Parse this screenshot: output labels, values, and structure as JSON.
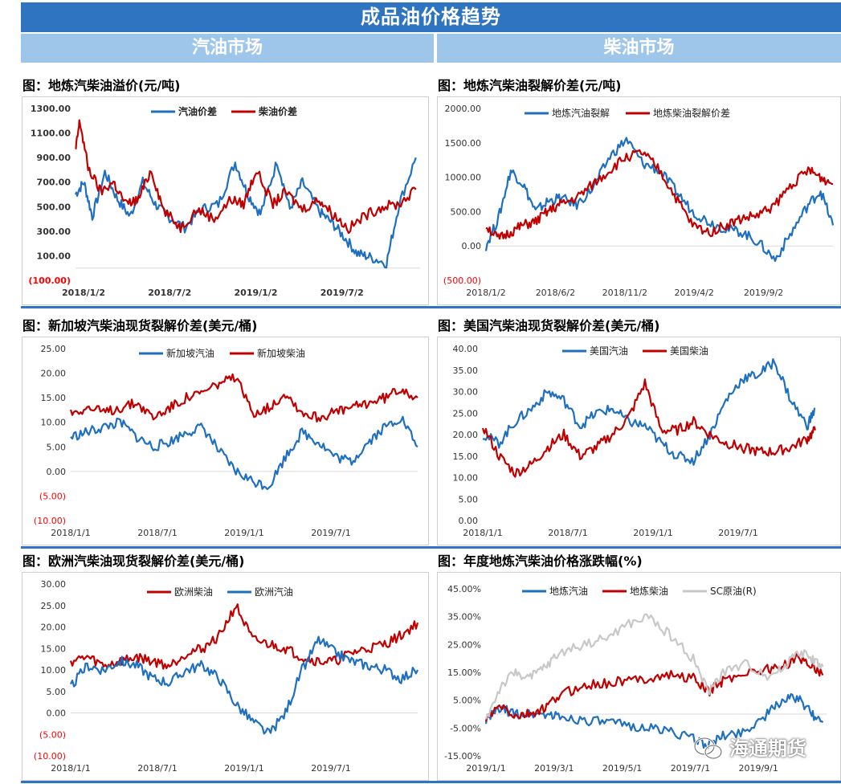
{
  "header": {
    "title": "成品油价格趋势",
    "left_market": "汽油市场",
    "right_market": "柴油市场"
  },
  "watermark": {
    "text": "海通期货",
    "icon": "wechat-icon"
  },
  "colors": {
    "blue": "#1f6fbf",
    "red": "#c00000",
    "gray": "#c8c8c8",
    "negative": "#ff0000",
    "banner": "#2e74c0",
    "subbanner": "#9ec5ea"
  },
  "chart_data": [
    {
      "id": "c1",
      "panel_title": "图：地炼汽柴油溢价(元/吨)",
      "type": "line",
      "ylim": [
        -100,
        1300
      ],
      "yticks": [
        {
          "label": "1300.00",
          "value": 1300
        },
        {
          "label": "1100.00",
          "value": 1100
        },
        {
          "label": "900.00",
          "value": 900
        },
        {
          "label": "700.00",
          "value": 700
        },
        {
          "label": "500.00",
          "value": 500
        },
        {
          "label": "300.00",
          "value": 300
        },
        {
          "label": "100.00",
          "value": 100
        },
        {
          "label": "(100.00)",
          "value": -100
        }
      ],
      "xticks": [
        "2018/1/2",
        "2018/7/2",
        "2019/1/2",
        "2019/7/2"
      ],
      "xrange": [
        0,
        4.1
      ],
      "legend_style": "bold",
      "series": [
        {
          "name": "汽油价差",
          "color": "#1f6fbf",
          "x": [
            0,
            0.1,
            0.2,
            0.35,
            0.5,
            0.65,
            0.8,
            0.95,
            1.1,
            1.3,
            1.5,
            1.7,
            1.9,
            2.05,
            2.2,
            2.4,
            2.55,
            2.7,
            2.9,
            3.05,
            3.2,
            3.35,
            3.5,
            3.7,
            3.85,
            4.05
          ],
          "values": [
            600,
            700,
            420,
            780,
            560,
            420,
            700,
            520,
            420,
            330,
            480,
            520,
            860,
            600,
            440,
            870,
            480,
            700,
            460,
            370,
            250,
            120,
            90,
            40,
            520,
            900
          ]
        },
        {
          "name": "柴油价差",
          "color": "#c00000",
          "x": [
            0,
            0.05,
            0.15,
            0.3,
            0.45,
            0.6,
            0.75,
            0.9,
            1.05,
            1.25,
            1.45,
            1.65,
            1.85,
            2.0,
            2.15,
            2.35,
            2.5,
            2.7,
            2.9,
            3.05,
            3.25,
            3.45,
            3.65,
            3.85,
            4.05
          ],
          "values": [
            950,
            1200,
            820,
            620,
            700,
            520,
            560,
            800,
            470,
            330,
            480,
            400,
            560,
            520,
            800,
            520,
            620,
            480,
            560,
            450,
            320,
            430,
            500,
            520,
            640
          ]
        }
      ]
    },
    {
      "id": "c2",
      "panel_title": "图：地炼汽柴油裂解价差(元/吨)",
      "type": "line",
      "ylim": [
        -500,
        2000
      ],
      "yticks": [
        {
          "label": "2000.00",
          "value": 2000
        },
        {
          "label": "1500.00",
          "value": 1500
        },
        {
          "label": "1000.00",
          "value": 1000
        },
        {
          "label": "500.00",
          "value": 500
        },
        {
          "label": "0.00",
          "value": 0
        },
        {
          "label": "(500.00)",
          "value": -500
        }
      ],
      "xticks": [
        "2018/1/2",
        "2018/6/2",
        "2018/11/2",
        "2019/4/2",
        "2019/9/2"
      ],
      "xrange": [
        0,
        4.2
      ],
      "legend_style": "normal",
      "series": [
        {
          "name": "地炼汽油裂解",
          "color": "#1f6fbf",
          "x": [
            0,
            0.15,
            0.3,
            0.45,
            0.6,
            0.75,
            0.9,
            1.1,
            1.3,
            1.5,
            1.7,
            1.9,
            2.1,
            2.3,
            2.5,
            2.7,
            2.9,
            3.1,
            3.3,
            3.5,
            3.7,
            3.9,
            4.05,
            4.2
          ],
          "values": [
            0,
            400,
            1100,
            900,
            500,
            650,
            700,
            600,
            850,
            1300,
            1550,
            1200,
            1100,
            800,
            500,
            350,
            250,
            200,
            50,
            -200,
            200,
            600,
            800,
            300
          ]
        },
        {
          "name": "地炼柴油裂解价差",
          "color": "#c00000",
          "x": [
            0,
            0.15,
            0.3,
            0.45,
            0.6,
            0.75,
            0.9,
            1.1,
            1.3,
            1.5,
            1.7,
            1.9,
            2.1,
            2.3,
            2.5,
            2.7,
            2.9,
            3.1,
            3.3,
            3.5,
            3.7,
            3.9,
            4.05,
            4.2
          ],
          "values": [
            300,
            100,
            200,
            300,
            350,
            500,
            600,
            700,
            900,
            1100,
            1300,
            1350,
            1100,
            700,
            300,
            200,
            300,
            400,
            450,
            600,
            900,
            1100,
            1000,
            900
          ]
        }
      ]
    },
    {
      "id": "c3",
      "panel_title": "图：新加坡汽柴油现货裂解价差(美元/桶)",
      "type": "line",
      "ylim": [
        -10,
        25
      ],
      "yticks": [
        {
          "label": "25.00",
          "value": 25
        },
        {
          "label": "20.00",
          "value": 20
        },
        {
          "label": "15.00",
          "value": 15
        },
        {
          "label": "10.00",
          "value": 10
        },
        {
          "label": "5.00",
          "value": 5
        },
        {
          "label": "0.00",
          "value": 0
        },
        {
          "label": "(5.00)",
          "value": -5
        },
        {
          "label": "(10.00)",
          "value": -10
        }
      ],
      "xticks": [
        "2018/1/1",
        "2018/7/1",
        "2019/1/1",
        "2019/7/1"
      ],
      "xrange": [
        0,
        4.2
      ],
      "legend_style": "normal",
      "series": [
        {
          "name": "新加坡汽油",
          "color": "#1f6fbf",
          "x": [
            0,
            0.2,
            0.4,
            0.6,
            0.8,
            1.0,
            1.2,
            1.4,
            1.6,
            1.8,
            2.0,
            2.2,
            2.4,
            2.6,
            2.8,
            3.0,
            3.2,
            3.4,
            3.6,
            3.8,
            4.0,
            4.2
          ],
          "values": [
            7,
            8,
            9,
            10,
            7,
            5,
            6,
            8,
            9,
            4,
            0,
            -2,
            -3,
            3,
            8,
            6,
            3,
            2,
            6,
            9,
            11,
            5
          ]
        },
        {
          "name": "新加坡柴油",
          "color": "#c00000",
          "x": [
            0,
            0.2,
            0.4,
            0.6,
            0.8,
            1.0,
            1.2,
            1.4,
            1.6,
            1.8,
            2.0,
            2.2,
            2.4,
            2.6,
            2.8,
            3.0,
            3.2,
            3.4,
            3.6,
            3.8,
            4.0,
            4.2
          ],
          "values": [
            12,
            13,
            12,
            13,
            14,
            11,
            13,
            15,
            16,
            18,
            19,
            12,
            13,
            16,
            12,
            11,
            12,
            13,
            14,
            15,
            17,
            15
          ]
        }
      ]
    },
    {
      "id": "c4",
      "panel_title": "图：美国汽柴油现货裂解价差(美元/桶)",
      "type": "line",
      "ylim": [
        0,
        40
      ],
      "yticks": [
        {
          "label": "40.00",
          "value": 40
        },
        {
          "label": "35.00",
          "value": 35
        },
        {
          "label": "30.00",
          "value": 30
        },
        {
          "label": "25.00",
          "value": 25
        },
        {
          "label": "20.00",
          "value": 20
        },
        {
          "label": "15.00",
          "value": 15
        },
        {
          "label": "10.00",
          "value": 10
        },
        {
          "label": "5.00",
          "value": 5
        },
        {
          "label": "0.00",
          "value": 0
        }
      ],
      "xticks": [
        "2018/1/1",
        "2018/7/1",
        "2019/1/1",
        "2019/7/1"
      ],
      "xrange": [
        0,
        4.2
      ],
      "legend_style": "normal",
      "series": [
        {
          "name": "美国汽油",
          "color": "#1f6fbf",
          "x": [
            0,
            0.2,
            0.4,
            0.6,
            0.8,
            1.0,
            1.2,
            1.4,
            1.6,
            1.8,
            2.0,
            2.2,
            2.4,
            2.6,
            2.8,
            3.0,
            3.2,
            3.4,
            3.6,
            3.8,
            4.0,
            4.1
          ],
          "values": [
            20,
            18,
            23,
            26,
            30,
            28,
            22,
            25,
            26,
            23,
            22,
            18,
            15,
            14,
            20,
            28,
            33,
            34,
            37,
            28,
            22,
            26
          ]
        },
        {
          "name": "美国柴油",
          "color": "#c00000",
          "x": [
            0,
            0.2,
            0.4,
            0.6,
            0.8,
            1.0,
            1.2,
            1.4,
            1.6,
            1.8,
            2.0,
            2.2,
            2.4,
            2.6,
            2.8,
            3.0,
            3.2,
            3.4,
            3.6,
            3.8,
            4.0,
            4.1
          ],
          "values": [
            22,
            15,
            11,
            13,
            17,
            20,
            15,
            17,
            20,
            24,
            32,
            21,
            21,
            23,
            20,
            18,
            17,
            16,
            16,
            17,
            19,
            21
          ]
        }
      ]
    },
    {
      "id": "c5",
      "panel_title": "图：欧洲汽柴油现货裂解价差(美元/桶)",
      "type": "line",
      "ylim": [
        -10,
        30
      ],
      "yticks": [
        {
          "label": "30.00",
          "value": 30
        },
        {
          "label": "25.00",
          "value": 25
        },
        {
          "label": "20.00",
          "value": 20
        },
        {
          "label": "15.00",
          "value": 15
        },
        {
          "label": "10.00",
          "value": 10
        },
        {
          "label": "5.00",
          "value": 5
        },
        {
          "label": "0.00",
          "value": 0
        },
        {
          "label": "(5.00)",
          "value": -5
        },
        {
          "label": "(10.00)",
          "value": -10
        }
      ],
      "xticks": [
        "2018/1/1",
        "2018/7/1",
        "2019/1/1",
        "2019/7/1"
      ],
      "xrange": [
        0,
        4.2
      ],
      "legend_style": "normal",
      "series": [
        {
          "name": "欧洲柴油",
          "color": "#c00000",
          "x": [
            0,
            0.2,
            0.4,
            0.6,
            0.8,
            1.0,
            1.2,
            1.4,
            1.6,
            1.8,
            2.0,
            2.2,
            2.4,
            2.6,
            2.8,
            3.0,
            3.2,
            3.4,
            3.6,
            3.8,
            4.0,
            4.2
          ],
          "values": [
            12,
            13,
            11,
            12,
            13,
            12,
            11,
            14,
            15,
            18,
            25,
            17,
            16,
            15,
            13,
            12,
            12,
            14,
            15,
            16,
            18,
            21
          ]
        },
        {
          "name": "欧洲汽油",
          "color": "#1f6fbf",
          "x": [
            0,
            0.2,
            0.4,
            0.6,
            0.8,
            1.0,
            1.2,
            1.4,
            1.6,
            1.8,
            2.0,
            2.2,
            2.4,
            2.6,
            2.8,
            3.0,
            3.2,
            3.4,
            3.6,
            3.8,
            4.0,
            4.2
          ],
          "values": [
            6,
            11,
            10,
            12,
            11,
            8,
            7,
            10,
            11,
            8,
            2,
            -2,
            -5,
            0,
            10,
            17,
            14,
            12,
            11,
            10,
            8,
            10
          ]
        }
      ]
    },
    {
      "id": "c6",
      "panel_title": "图：年度地炼汽柴油价格涨跌幅(%)",
      "type": "line",
      "ylim": [
        -15,
        45
      ],
      "yticks": [
        {
          "label": "45.00%",
          "value": 45
        },
        {
          "label": "35.00%",
          "value": 35
        },
        {
          "label": "25.00%",
          "value": 25
        },
        {
          "label": "15.00%",
          "value": 15
        },
        {
          "label": "5.00%",
          "value": 5
        },
        {
          "label": "-5.00%",
          "value": -5
        },
        {
          "label": "-15.00%",
          "value": -15
        }
      ],
      "xticks": [
        "2019/1/1",
        "2019/3/1",
        "2019/5/1",
        "2019/7/1",
        "2019/9/1"
      ],
      "xrange": [
        0,
        4.6
      ],
      "legend_style": "normal",
      "series": [
        {
          "name": "地炼汽油",
          "color": "#1f6fbf",
          "x": [
            0,
            0.2,
            0.4,
            0.6,
            0.8,
            1.0,
            1.3,
            1.6,
            1.9,
            2.2,
            2.5,
            2.8,
            3.0,
            3.2,
            3.5,
            3.8,
            4.0,
            4.2,
            4.4,
            4.55
          ],
          "values": [
            -2,
            2,
            0,
            0,
            0,
            -1,
            -2,
            -3,
            -4,
            -5,
            -6,
            -9,
            -11,
            -8,
            -6,
            0,
            5,
            6,
            0,
            -3
          ]
        },
        {
          "name": "地炼柴油",
          "color": "#c00000",
          "x": [
            0,
            0.2,
            0.4,
            0.6,
            0.8,
            1.0,
            1.3,
            1.6,
            1.9,
            2.2,
            2.5,
            2.8,
            3.0,
            3.2,
            3.5,
            3.8,
            4.0,
            4.2,
            4.4,
            4.55
          ],
          "values": [
            -2,
            3,
            -1,
            0,
            2,
            7,
            10,
            11,
            12,
            13,
            14,
            13,
            8,
            12,
            15,
            16,
            17,
            20,
            18,
            14
          ]
        },
        {
          "name": "SC原油(R)",
          "color": "#c8c8c8",
          "x": [
            0,
            0.2,
            0.4,
            0.6,
            0.8,
            1.0,
            1.3,
            1.6,
            1.9,
            2.2,
            2.5,
            2.8,
            3.0,
            3.2,
            3.5,
            3.8,
            4.0,
            4.2,
            4.4,
            4.55
          ],
          "values": [
            -2,
            10,
            15,
            13,
            17,
            22,
            25,
            27,
            32,
            35,
            28,
            20,
            8,
            15,
            18,
            14,
            16,
            23,
            20,
            17
          ]
        }
      ]
    }
  ]
}
